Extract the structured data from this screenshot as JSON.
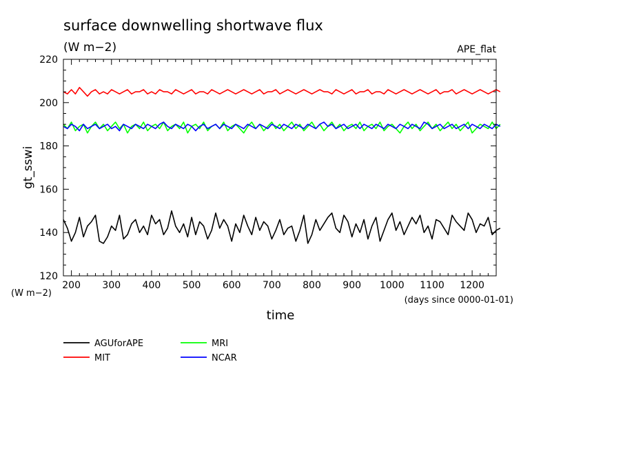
{
  "chart_data": {
    "type": "line",
    "title": "surface downwelling shortwave flux",
    "subtitle": "(W m−2)",
    "corner_label": "APE_flat",
    "ylabel": "gt_sswi",
    "y_unit": "(W m−2)",
    "xlabel": "time",
    "x_unit": "(days since 0000-01-01)",
    "xlim": [
      180,
      1260
    ],
    "ylim": [
      120,
      220
    ],
    "x_ticks": [
      200,
      300,
      400,
      500,
      600,
      700,
      800,
      900,
      1000,
      1100,
      1200
    ],
    "y_ticks": [
      120,
      140,
      160,
      180,
      200,
      220
    ],
    "grid": false,
    "legend_position": "bottom-left",
    "series": [
      {
        "name": "AGUforAPE",
        "color": "#000000",
        "x_range": [
          180,
          1260
        ],
        "x_step": 10,
        "values": [
          146,
          142,
          136,
          140,
          147,
          138,
          143,
          145,
          148,
          136,
          135,
          138,
          143,
          141,
          148,
          137,
          139,
          144,
          146,
          140,
          143,
          139,
          148,
          144,
          146,
          139,
          142,
          150,
          143,
          140,
          144,
          138,
          147,
          139,
          145,
          143,
          137,
          141,
          149,
          142,
          146,
          143,
          136,
          144,
          140,
          148,
          143,
          139,
          147,
          141,
          145,
          143,
          137,
          141,
          146,
          139,
          142,
          143,
          136,
          141,
          148,
          135,
          139,
          146,
          141,
          144,
          147,
          149,
          142,
          140,
          148,
          145,
          138,
          144,
          140,
          146,
          137,
          143,
          147,
          136,
          141,
          146,
          149,
          141,
          145,
          139,
          143,
          147,
          144,
          148,
          140,
          143,
          137,
          146,
          145,
          142,
          139,
          148,
          145,
          143,
          141,
          149,
          146,
          140,
          144,
          143,
          147,
          139,
          141,
          142
        ]
      },
      {
        "name": "MIT",
        "color": "#ff0000",
        "x_range": [
          180,
          1270
        ],
        "x_step": 10,
        "values": [
          205,
          204,
          206,
          204,
          207,
          205,
          203,
          205,
          206,
          204,
          205,
          204,
          206,
          205,
          204,
          205,
          206,
          204,
          205,
          205,
          206,
          204,
          205,
          204,
          206,
          205,
          205,
          204,
          206,
          205,
          204,
          205,
          206,
          204,
          205,
          205,
          204,
          206,
          205,
          204,
          205,
          206,
          205,
          204,
          205,
          206,
          205,
          204,
          205,
          206,
          204,
          205,
          205,
          206,
          204,
          205,
          206,
          205,
          204,
          205,
          206,
          205,
          204,
          205,
          206,
          205,
          205,
          204,
          206,
          205,
          204,
          205,
          206,
          204,
          205,
          205,
          206,
          204,
          205,
          205,
          204,
          206,
          205,
          204,
          205,
          206,
          205,
          204,
          205,
          206,
          205,
          204,
          205,
          206,
          204,
          205,
          205,
          206,
          204,
          205,
          206,
          205,
          204,
          205,
          206,
          205,
          204,
          205,
          206,
          205
        ]
      },
      {
        "name": "MRI",
        "color": "#00ff00",
        "x_range": [
          180,
          1260
        ],
        "x_step": 10,
        "values": [
          190,
          188,
          191,
          187,
          189,
          190,
          186,
          189,
          191,
          188,
          190,
          187,
          189,
          191,
          188,
          190,
          186,
          189,
          190,
          188,
          191,
          187,
          189,
          190,
          188,
          191,
          187,
          189,
          190,
          188,
          191,
          186,
          189,
          190,
          188,
          191,
          187,
          189,
          190,
          188,
          191,
          187,
          189,
          190,
          188,
          186,
          189,
          191,
          188,
          190,
          187,
          189,
          191,
          188,
          190,
          187,
          189,
          191,
          188,
          190,
          187,
          189,
          191,
          188,
          190,
          187,
          189,
          191,
          188,
          190,
          187,
          189,
          190,
          188,
          191,
          187,
          189,
          190,
          188,
          191,
          187,
          189,
          190,
          188,
          186,
          189,
          191,
          188,
          190,
          187,
          189,
          191,
          188,
          190,
          187,
          189,
          191,
          188,
          190,
          187,
          189,
          191,
          186,
          188,
          190,
          189,
          188,
          191,
          188,
          190
        ]
      },
      {
        "name": "NCAR",
        "color": "#0000ff",
        "x_range": [
          180,
          1260
        ],
        "x_step": 10,
        "values": [
          189,
          188,
          190,
          189,
          187,
          190,
          188,
          189,
          190,
          188,
          189,
          190,
          188,
          189,
          187,
          190,
          189,
          188,
          190,
          189,
          188,
          190,
          189,
          188,
          190,
          191,
          189,
          188,
          190,
          189,
          188,
          190,
          189,
          187,
          189,
          190,
          188,
          189,
          190,
          188,
          190,
          189,
          188,
          190,
          189,
          188,
          190,
          189,
          188,
          190,
          189,
          188,
          190,
          189,
          188,
          190,
          189,
          188,
          190,
          189,
          188,
          190,
          189,
          188,
          190,
          191,
          189,
          190,
          188,
          189,
          190,
          188,
          189,
          190,
          188,
          190,
          189,
          188,
          190,
          189,
          188,
          190,
          189,
          188,
          190,
          189,
          188,
          190,
          189,
          188,
          191,
          190,
          188,
          189,
          190,
          188,
          189,
          190,
          188,
          189,
          190,
          188,
          190,
          189,
          188,
          190,
          189,
          188,
          190,
          189
        ]
      }
    ]
  }
}
